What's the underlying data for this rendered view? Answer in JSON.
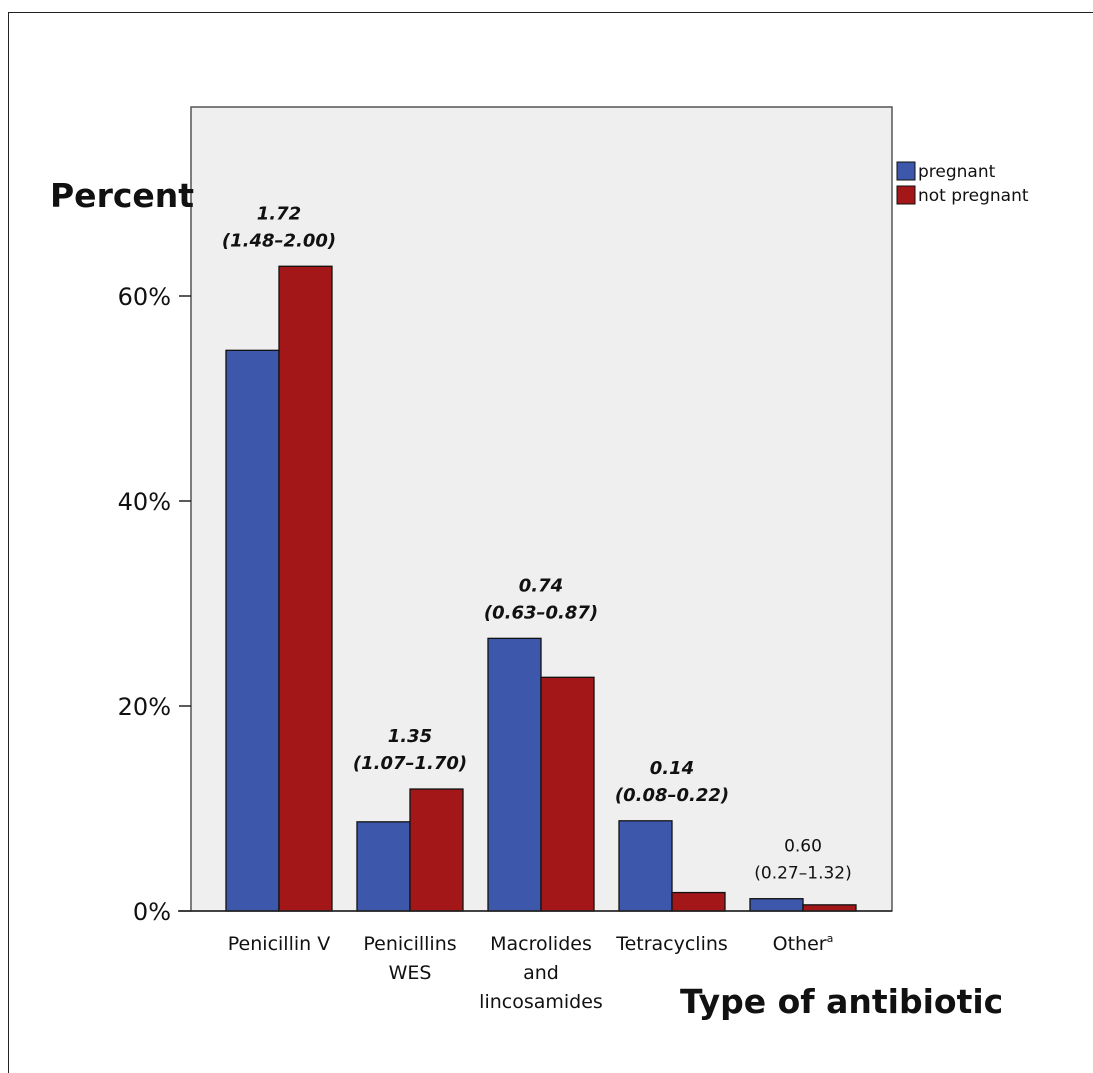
{
  "chart_data": {
    "type": "bar",
    "ylabel": "Percent",
    "xlabel": "Type of antibiotic",
    "ylim": [
      0,
      78
    ],
    "yticks": [
      0,
      20,
      40,
      60
    ],
    "ytick_labels": [
      "0%",
      "20%",
      "40%",
      "60%"
    ],
    "categories": [
      [
        "Penicillin V"
      ],
      [
        "Penicillins",
        "WES"
      ],
      [
        "Macrolides",
        "and",
        "lincosamides"
      ],
      [
        "Tetracyclins"
      ],
      [
        "Other"
      ]
    ],
    "category_superscripts": [
      "",
      "",
      "",
      "",
      "a"
    ],
    "series": [
      {
        "name": "pregnant",
        "color": "#3D58AA",
        "values": [
          54.7,
          8.7,
          26.6,
          8.8,
          1.2
        ]
      },
      {
        "name": "not pregnant",
        "color": "#A31719",
        "values": [
          62.9,
          11.9,
          22.8,
          1.8,
          0.6
        ]
      }
    ],
    "annotations": [
      {
        "category_index": 0,
        "lines": [
          "1.72",
          "(1.48–2.00)"
        ],
        "style": "bold-italic"
      },
      {
        "category_index": 1,
        "lines": [
          "1.35",
          "(1.07–1.70)"
        ],
        "style": "bold-italic"
      },
      {
        "category_index": 2,
        "lines": [
          "0.74",
          "(0.63–0.87)"
        ],
        "style": "bold-italic"
      },
      {
        "category_index": 3,
        "lines": [
          "0.14",
          "(0.08–0.22)"
        ],
        "style": "bold-italic"
      },
      {
        "category_index": 4,
        "lines": [
          "0.60",
          "(0.27–1.32)"
        ],
        "style": "normal"
      }
    ],
    "legend_position": "right",
    "plot_background": "#EFEFEF",
    "grid": false
  }
}
